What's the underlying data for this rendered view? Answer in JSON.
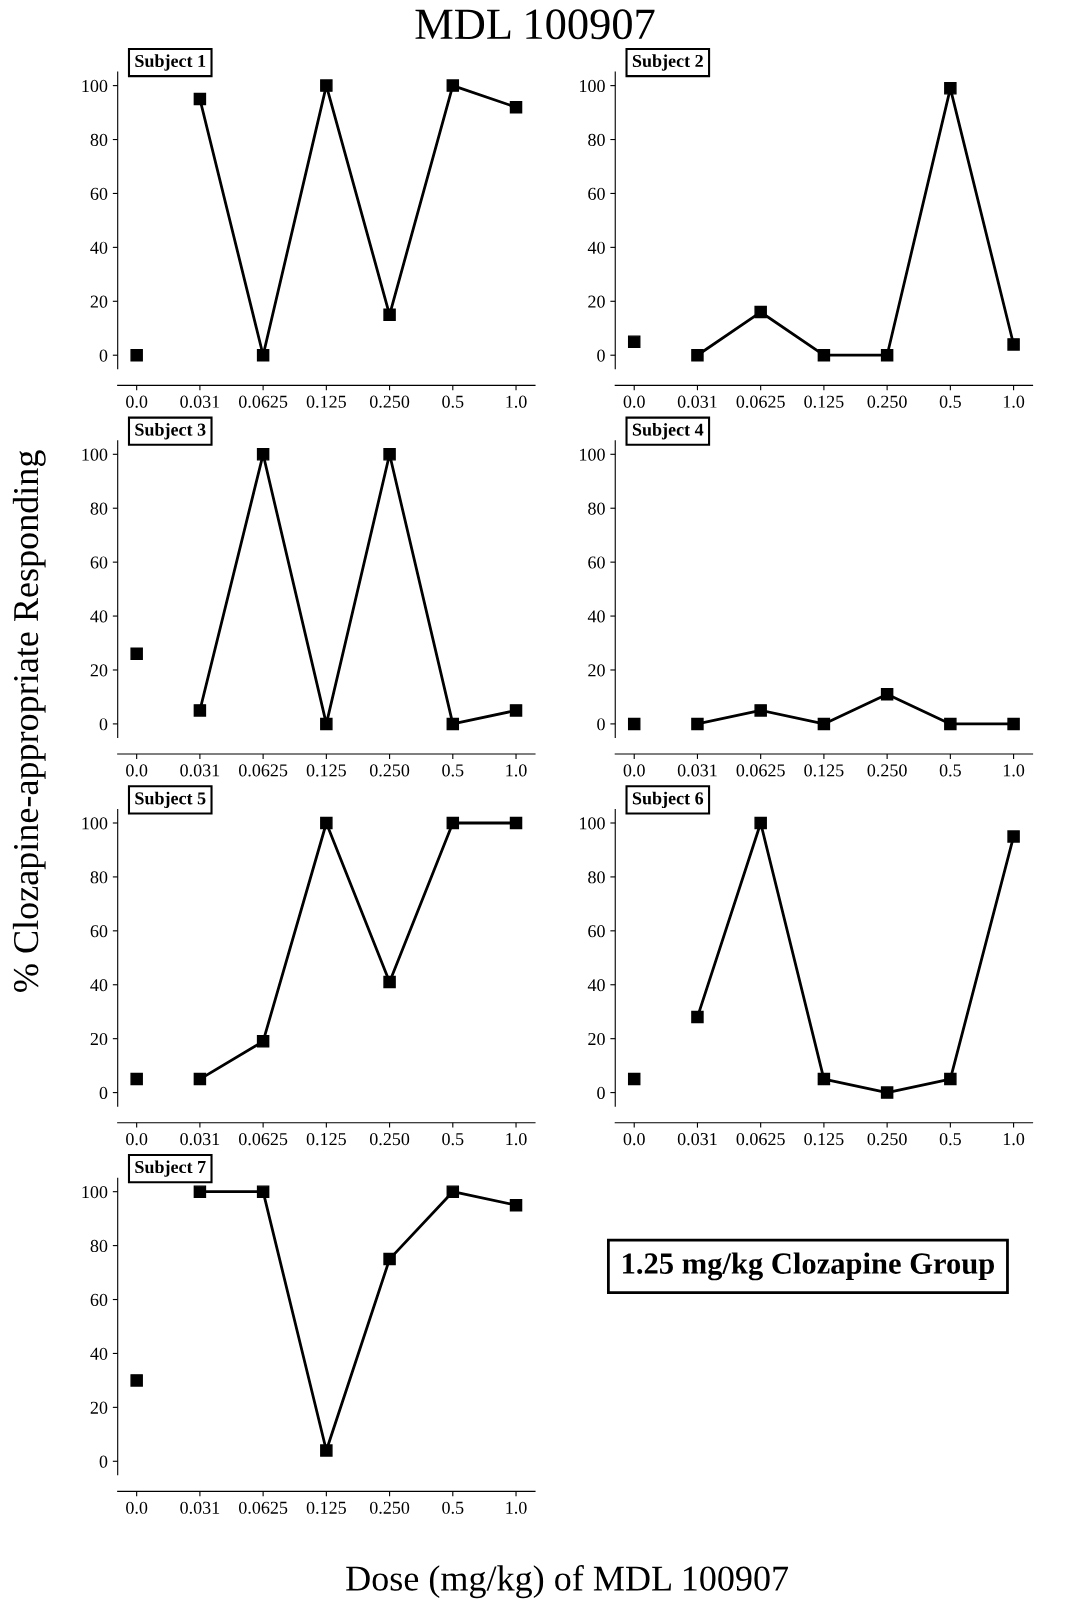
{
  "chart_data": [
    {
      "type": "line",
      "title": "Subject 1",
      "categories": [
        "0.0",
        "0.031",
        "0.0625",
        "0.125",
        "0.250",
        "0.5",
        "1.0"
      ],
      "ylim": [
        -5,
        105
      ],
      "yticks": [
        0,
        20,
        40,
        60,
        80,
        100
      ],
      "marker": "square",
      "grid": false,
      "series": [
        {
          "type": "scatter",
          "color": "#000000",
          "values": [
            0,
            null,
            null,
            null,
            null,
            null,
            null
          ]
        },
        {
          "type": "line",
          "color": "#000000",
          "values": [
            null,
            95,
            0,
            100,
            15,
            100,
            92
          ]
        }
      ]
    },
    {
      "type": "line",
      "title": "Subject 2",
      "categories": [
        "0.0",
        "0.031",
        "0.0625",
        "0.125",
        "0.250",
        "0.5",
        "1.0"
      ],
      "ylim": [
        -5,
        105
      ],
      "yticks": [
        0,
        20,
        40,
        60,
        80,
        100
      ],
      "marker": "square",
      "grid": false,
      "series": [
        {
          "type": "scatter",
          "color": "#000000",
          "values": [
            5,
            null,
            null,
            null,
            null,
            null,
            null
          ]
        },
        {
          "type": "line",
          "color": "#000000",
          "values": [
            null,
            0,
            16,
            0,
            0,
            99,
            4
          ]
        }
      ]
    },
    {
      "type": "line",
      "title": "Subject 3",
      "categories": [
        "0.0",
        "0.031",
        "0.0625",
        "0.125",
        "0.250",
        "0.5",
        "1.0"
      ],
      "ylim": [
        -5,
        105
      ],
      "yticks": [
        0,
        20,
        40,
        60,
        80,
        100
      ],
      "marker": "square",
      "grid": false,
      "series": [
        {
          "type": "scatter",
          "color": "#000000",
          "values": [
            26,
            null,
            null,
            null,
            null,
            null,
            null
          ]
        },
        {
          "type": "line",
          "color": "#000000",
          "values": [
            null,
            5,
            100,
            0,
            100,
            0,
            5
          ]
        }
      ]
    },
    {
      "type": "line",
      "title": "Subject 4",
      "categories": [
        "0.0",
        "0.031",
        "0.0625",
        "0.125",
        "0.250",
        "0.5",
        "1.0"
      ],
      "ylim": [
        -5,
        105
      ],
      "yticks": [
        0,
        20,
        40,
        60,
        80,
        100
      ],
      "marker": "square",
      "grid": false,
      "series": [
        {
          "type": "scatter",
          "color": "#000000",
          "values": [
            0,
            null,
            null,
            null,
            null,
            null,
            null
          ]
        },
        {
          "type": "line",
          "color": "#000000",
          "values": [
            null,
            0,
            5,
            0,
            11,
            0,
            0
          ]
        }
      ]
    },
    {
      "type": "line",
      "title": "Subject 5",
      "categories": [
        "0.0",
        "0.031",
        "0.0625",
        "0.125",
        "0.250",
        "0.5",
        "1.0"
      ],
      "ylim": [
        -5,
        105
      ],
      "yticks": [
        0,
        20,
        40,
        60,
        80,
        100
      ],
      "marker": "square",
      "grid": false,
      "series": [
        {
          "type": "scatter",
          "color": "#000000",
          "values": [
            5,
            null,
            null,
            null,
            null,
            null,
            null
          ]
        },
        {
          "type": "line",
          "color": "#000000",
          "values": [
            null,
            5,
            19,
            100,
            41,
            100,
            100
          ]
        }
      ]
    },
    {
      "type": "line",
      "title": "Subject 6",
      "categories": [
        "0.0",
        "0.031",
        "0.0625",
        "0.125",
        "0.250",
        "0.5",
        "1.0"
      ],
      "ylim": [
        -5,
        105
      ],
      "yticks": [
        0,
        20,
        40,
        60,
        80,
        100
      ],
      "marker": "square",
      "grid": false,
      "series": [
        {
          "type": "scatter",
          "color": "#000000",
          "values": [
            5,
            null,
            null,
            null,
            null,
            null,
            null
          ]
        },
        {
          "type": "line",
          "color": "#000000",
          "values": [
            null,
            28,
            100,
            5,
            0,
            5,
            95
          ]
        }
      ]
    },
    {
      "type": "line",
      "title": "Subject 7",
      "categories": [
        "0.0",
        "0.031",
        "0.0625",
        "0.125",
        "0.250",
        "0.5",
        "1.0"
      ],
      "ylim": [
        -5,
        105
      ],
      "yticks": [
        0,
        20,
        40,
        60,
        80,
        100
      ],
      "marker": "square",
      "grid": false,
      "series": [
        {
          "type": "scatter",
          "color": "#000000",
          "values": [
            30,
            null,
            null,
            null,
            null,
            null,
            null
          ]
        },
        {
          "type": "line",
          "color": "#000000",
          "values": [
            null,
            100,
            100,
            4,
            75,
            100,
            95
          ]
        }
      ]
    },
    {
      "type": "other",
      "title": "MDL 100907",
      "xlabel": "Dose (mg/kg) of MDL 100907",
      "ylabel": "% Clozapine-appropriate Responding",
      "annotations": [
        "1.25 mg/kg Clozapine Group"
      ]
    }
  ]
}
